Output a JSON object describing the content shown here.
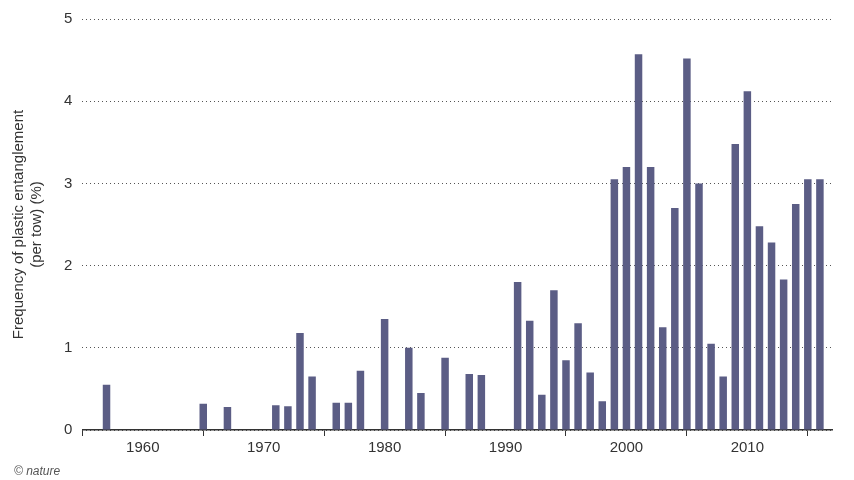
{
  "chart_data": {
    "type": "bar",
    "y_label": [
      "Frequency of plastic entanglement",
      "(per tow) (%)"
    ],
    "annotations": [
      "© nature"
    ],
    "x": [
      1957,
      1965,
      1967,
      1971,
      1972,
      1973,
      1974,
      1976,
      1977,
      1978,
      1980,
      1982,
      1983,
      1985,
      1987,
      1988,
      1991,
      1992,
      1993,
      1994,
      1995,
      1996,
      1997,
      1998,
      1999,
      2000,
      2001,
      2002,
      2003,
      2004,
      2005,
      2006,
      2007,
      2008,
      2009,
      2010,
      2011,
      2012,
      2013,
      2014,
      2015,
      2016
    ],
    "values": [
      0.55,
      0.32,
      0.28,
      0.3,
      0.29,
      1.18,
      0.65,
      0.33,
      0.33,
      0.72,
      1.35,
      1.0,
      0.45,
      0.88,
      0.68,
      0.67,
      1.8,
      1.33,
      0.43,
      1.7,
      0.85,
      1.3,
      0.7,
      0.35,
      3.05,
      3.2,
      4.57,
      3.2,
      1.25,
      2.7,
      4.52,
      3.0,
      1.05,
      0.65,
      3.48,
      4.12,
      2.48,
      2.28,
      1.83,
      2.75,
      3.05,
      3.05
    ],
    "color": "#5b5d85",
    "xlim": [
      1955,
      2017
    ],
    "xticks": [
      1960,
      1970,
      1980,
      1990,
      2000,
      2010
    ],
    "ylim": [
      0,
      5
    ],
    "yticks": [
      0,
      1,
      2,
      3,
      4,
      5
    ],
    "grid": true
  }
}
